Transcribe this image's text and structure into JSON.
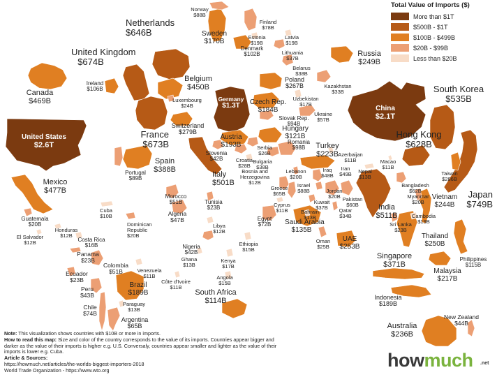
{
  "legend": {
    "title": "Total Value of Imports ($)",
    "items": [
      {
        "label": "More than $1T",
        "color": "#7b3a10"
      },
      {
        "label": "$500B - $1T",
        "color": "#b65a16"
      },
      {
        "label": "$100B - $499B",
        "color": "#e07f22"
      },
      {
        "label": "$20B - $99B",
        "color": "#ec9f74"
      },
      {
        "label": "Less than $20B",
        "color": "#f8dcc7"
      }
    ]
  },
  "countries": [
    {
      "id": "united-states",
      "name": "United States",
      "value": "$2.6T",
      "tier": 0
    },
    {
      "id": "china",
      "name": "China",
      "value": "$2.1T",
      "tier": 0
    },
    {
      "id": "germany",
      "name": "Germany",
      "value": "$1.3T",
      "tier": 0
    },
    {
      "id": "japan",
      "name": "Japan",
      "value": "$749B",
      "tier": 1
    },
    {
      "id": "united-kingdom",
      "name": "United Kingdom",
      "value": "$674B",
      "tier": 1
    },
    {
      "id": "france",
      "name": "France",
      "value": "$673B",
      "tier": 1
    },
    {
      "id": "netherlands",
      "name": "Netherlands",
      "value": "$646B",
      "tier": 1
    },
    {
      "id": "hong-kong",
      "name": "Hong Kong",
      "value": "$628B",
      "tier": 1
    },
    {
      "id": "south-korea",
      "name": "South Korea",
      "value": "$535B",
      "tier": 1
    },
    {
      "id": "italy",
      "name": "Italy",
      "value": "$501B",
      "tier": 1
    },
    {
      "id": "india",
      "name": "India",
      "value": "$511B",
      "tier": 1
    },
    {
      "id": "mexico",
      "name": "Mexico",
      "value": "$477B",
      "tier": 2
    },
    {
      "id": "canada",
      "name": "Canada",
      "value": "$469B",
      "tier": 2
    },
    {
      "id": "belgium",
      "name": "Belgium",
      "value": "$450B",
      "tier": 2
    },
    {
      "id": "spain",
      "name": "Spain",
      "value": "$388B",
      "tier": 2
    },
    {
      "id": "singapore",
      "name": "Singapore",
      "value": "$371B",
      "tier": 2
    },
    {
      "id": "taiwan",
      "name": "Taiwan",
      "value": "$286B",
      "tier": 2
    },
    {
      "id": "switzerland",
      "name": "Switzerland",
      "value": "$279B",
      "tier": 2
    },
    {
      "id": "poland",
      "name": "Poland",
      "value": "$267B",
      "tier": 2
    },
    {
      "id": "uae",
      "name": "UAE",
      "value": "$253B",
      "tier": 2
    },
    {
      "id": "thailand",
      "name": "Thailand",
      "value": "$250B",
      "tier": 2
    },
    {
      "id": "russia",
      "name": "Russia",
      "value": "$249B",
      "tier": 2
    },
    {
      "id": "vietnam",
      "name": "Vietnam",
      "value": "$244B",
      "tier": 2
    },
    {
      "id": "australia",
      "name": "Australia",
      "value": "$236B",
      "tier": 2
    },
    {
      "id": "turkey",
      "name": "Turkey",
      "value": "$223B",
      "tier": 2
    },
    {
      "id": "malaysia",
      "name": "Malaysia",
      "value": "$217B",
      "tier": 2
    },
    {
      "id": "austria",
      "name": "Austria",
      "value": "$193B",
      "tier": 2
    },
    {
      "id": "brazil",
      "name": "Brazil",
      "value": "$189B",
      "tier": 2
    },
    {
      "id": "indonesia",
      "name": "Indonesia",
      "value": "$189B",
      "tier": 2
    },
    {
      "id": "czech-rep",
      "name": "Czech Rep.",
      "value": "$184B",
      "tier": 2
    },
    {
      "id": "sweden",
      "name": "Sweden",
      "value": "$170B",
      "tier": 2
    },
    {
      "id": "saudi-arabia",
      "name": "Saudi Arabia",
      "value": "$135B",
      "tier": 2
    },
    {
      "id": "hungary",
      "name": "Hungary",
      "value": "$121B",
      "tier": 2
    },
    {
      "id": "philippines",
      "name": "Philippines",
      "value": "$115B",
      "tier": 2
    },
    {
      "id": "south-africa",
      "name": "South Africa",
      "value": "$114B",
      "tier": 2
    },
    {
      "id": "ireland",
      "name": "Ireland",
      "value": "$106B",
      "tier": 2
    },
    {
      "id": "denmark",
      "name": "Denmark",
      "value": "$102B",
      "tier": 2
    },
    {
      "id": "slovak-rep",
      "name": "Slovak Rep.",
      "value": "$94B",
      "tier": 3
    },
    {
      "id": "romania",
      "name": "Romania",
      "value": "$98B",
      "tier": 3
    },
    {
      "id": "portugal",
      "name": "Portugal",
      "value": "$89B",
      "tier": 3
    },
    {
      "id": "norway",
      "name": "Norway",
      "value": "$88B",
      "tier": 3
    },
    {
      "id": "israel",
      "name": "Israel",
      "value": "$88B",
      "tier": 3
    },
    {
      "id": "finland",
      "name": "Finland",
      "value": "$78B",
      "tier": 3
    },
    {
      "id": "chile",
      "name": "Chile",
      "value": "$74B",
      "tier": 3
    },
    {
      "id": "egypt",
      "name": "Egypt",
      "value": "$72B",
      "tier": 3
    },
    {
      "id": "argentina",
      "name": "Argentina",
      "value": "$65B",
      "tier": 3
    },
    {
      "id": "greece",
      "name": "Greece",
      "value": "$65B",
      "tier": 3
    },
    {
      "id": "bangladesh",
      "name": "Bangladesh",
      "value": "$62B",
      "tier": 3
    },
    {
      "id": "pakistan",
      "name": "Pakistan",
      "value": "$60B",
      "tier": 3
    },
    {
      "id": "ukraine",
      "name": "Ukraine",
      "value": "$57B",
      "tier": 3
    },
    {
      "id": "colombia",
      "name": "Colombia",
      "value": "$51B",
      "tier": 3
    },
    {
      "id": "morocco",
      "name": "Morocco",
      "value": "$51B",
      "tier": 3
    },
    {
      "id": "iran",
      "name": "Iran",
      "value": "$49B",
      "tier": 3
    },
    {
      "id": "iraq",
      "name": "Iraq",
      "value": "$48B",
      "tier": 3
    },
    {
      "id": "algeria",
      "name": "Algeria",
      "value": "$47B",
      "tier": 3
    },
    {
      "id": "new-zealand",
      "name": "New Zealand",
      "value": "$44B",
      "tier": 3
    },
    {
      "id": "peru",
      "name": "Peru",
      "value": "$43B",
      "tier": 3
    },
    {
      "id": "nigeria",
      "name": "Nigeria",
      "value": "$42B",
      "tier": 3
    },
    {
      "id": "slovenia",
      "name": "Slovenia",
      "value": "$42B",
      "tier": 3
    },
    {
      "id": "belarus",
      "name": "Belarus",
      "value": "$38B",
      "tier": 3
    },
    {
      "id": "bulgaria",
      "name": "Bulgaria",
      "value": "$38B",
      "tier": 3
    },
    {
      "id": "kuwait",
      "name": "Kuwait",
      "value": "$37B",
      "tier": 3
    },
    {
      "id": "lithuania",
      "name": "Lithuania",
      "value": "$37B",
      "tier": 3
    },
    {
      "id": "qatar",
      "name": "Qatar",
      "value": "$34B",
      "tier": 3
    },
    {
      "id": "kazakhstan",
      "name": "Kazakhstan",
      "value": "$33B",
      "tier": 3
    },
    {
      "id": "croatia",
      "name": "Croatia",
      "value": "$28B",
      "tier": 3
    },
    {
      "id": "serbia",
      "name": "Serbia",
      "value": "$26B",
      "tier": 3
    },
    {
      "id": "oman",
      "name": "Oman",
      "value": "$25B",
      "tier": 3
    },
    {
      "id": "luxembourg",
      "name": "Luxembourg",
      "value": "$24B",
      "tier": 3
    },
    {
      "id": "ecuador",
      "name": "Ecuador",
      "value": "$23B",
      "tier": 3
    },
    {
      "id": "panama",
      "name": "Panama",
      "value": "$23B",
      "tier": 3
    },
    {
      "id": "sri-lanka",
      "name": "Sri Lanka",
      "value": "$23B",
      "tier": 3
    },
    {
      "id": "tunisia",
      "name": "Tunisia",
      "value": "$23B",
      "tier": 3
    },
    {
      "id": "jordan",
      "name": "Jordan",
      "value": "$20B",
      "tier": 3
    },
    {
      "id": "guatemala",
      "name": "Guatemala",
      "value": "$20B",
      "tier": 3
    },
    {
      "id": "dominican-republic",
      "name": "Dominican\nRepublic",
      "value": "$20B",
      "tier": 3
    },
    {
      "id": "lebanon",
      "name": "Lebanon",
      "value": "$20B",
      "tier": 3
    },
    {
      "id": "cambodia",
      "name": "Cambodia",
      "value": "$19B",
      "tier": 4
    },
    {
      "id": "estonia",
      "name": "Estonia",
      "value": "$19B",
      "tier": 4
    },
    {
      "id": "latvia",
      "name": "Latvia",
      "value": "$19B",
      "tier": 4
    },
    {
      "id": "myanmar",
      "name": "Myanmar",
      "value": "$20B",
      "tier": 3
    },
    {
      "id": "uzbekistan",
      "name": "Uzbekistan",
      "value": "$17B",
      "tier": 4
    },
    {
      "id": "kenya",
      "name": "Kenya",
      "value": "$17B",
      "tier": 4
    },
    {
      "id": "costa-rica",
      "name": "Costa Rica",
      "value": "$16B",
      "tier": 4
    },
    {
      "id": "angola",
      "name": "Angola",
      "value": "$15B",
      "tier": 4
    },
    {
      "id": "ethiopia",
      "name": "Ethiopia",
      "value": "$15B",
      "tier": 4
    },
    {
      "id": "bahrain",
      "name": "Bahrain",
      "value": "$13B",
      "tier": 4
    },
    {
      "id": "ghana",
      "name": "Ghana",
      "value": "$13B",
      "tier": 4
    },
    {
      "id": "nepal",
      "name": "Nepal",
      "value": "$13B",
      "tier": 4
    },
    {
      "id": "paraguay",
      "name": "Paraguay",
      "value": "$13B",
      "tier": 4
    },
    {
      "id": "bosnia-and-herzegovina",
      "name": "Bosnia and\nHerzegovina",
      "value": "$12B",
      "tier": 4
    },
    {
      "id": "el-salvador",
      "name": "El Salvador",
      "value": "$12B",
      "tier": 4
    },
    {
      "id": "honduras",
      "name": "Honduras",
      "value": "$12B",
      "tier": 4
    },
    {
      "id": "libya",
      "name": "Libya",
      "value": "$12B",
      "tier": 4
    },
    {
      "id": "azerbaijan",
      "name": "Azerbaijan",
      "value": "$11B",
      "tier": 4
    },
    {
      "id": "cyprus",
      "name": "Cyprus",
      "value": "$11B",
      "tier": 4
    },
    {
      "id": "cote-divoire",
      "name": "Côte d'Ivoire",
      "value": "$11B",
      "tier": 4
    },
    {
      "id": "macao",
      "name": "Macao",
      "value": "$11B",
      "tier": 4
    },
    {
      "id": "venezuela",
      "name": "Venezuela",
      "value": "$11B",
      "tier": 4
    },
    {
      "id": "cuba",
      "name": "Cuba",
      "value": "$10B",
      "tier": 4
    }
  ],
  "notes": {
    "note_label": "Note:",
    "note_text": "This visualization shows countries with $10B or more in imports.",
    "howto_label": "How to read this map:",
    "howto_text": "Size and color of the country corresponds to the value of its imports. Countries appear bigger and darker as the value of their imports is higher e.g. U.S. Conversaly, countries appear smaller and lighter as the value of their imports is lower e.g. Cuba.",
    "sources_label": "Article & Sources:",
    "source_1": "https://howmuch.net/articles/the-worlds-biggest-importers-2018",
    "source_2": "World Trade Organization - https://www.wto.org"
  },
  "brand": {
    "part1": "how",
    "part2": "much",
    "suffix": ".net"
  }
}
